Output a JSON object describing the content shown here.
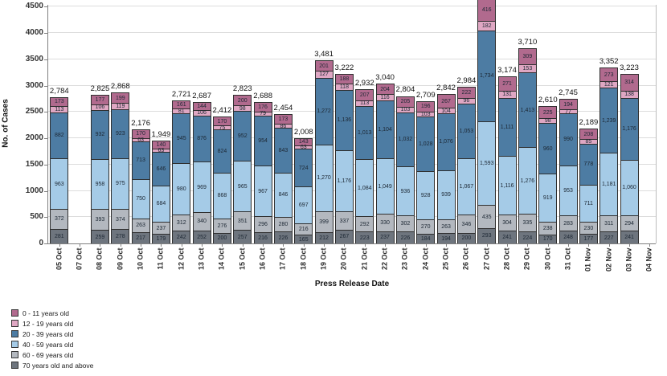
{
  "chart_data": {
    "type": "bar",
    "stacked": true,
    "xlabel": "Press Release Date",
    "ylabel": "No. of Cases",
    "ylim": [
      0,
      4500
    ],
    "yticks": [
      0,
      500,
      1000,
      1500,
      2000,
      2500,
      3000,
      3500,
      4000,
      4500
    ],
    "grid": "horizontal",
    "legend_position": "bottom-left",
    "series_order_bottom_to_top": [
      "70 years old and above",
      "60 - 69 years old",
      "40 - 59 years old",
      "20 - 39 years old",
      "12 - 19 years old",
      "0 - 11 years old"
    ],
    "legend": [
      {
        "label": "0 - 11 years old",
        "color": "#b16a8e"
      },
      {
        "label": "12 - 19 years old",
        "color": "#dfa7c3"
      },
      {
        "label": "20 - 39 years old",
        "color": "#4d7ca3"
      },
      {
        "label": "40 - 59 years old",
        "color": "#a5cbe7"
      },
      {
        "label": "60 - 69 years old",
        "color": "#b3b8bf"
      },
      {
        "label": "70 years old and above",
        "color": "#6e757e"
      }
    ],
    "colors_bottom_to_top": [
      "#6e757e",
      "#b3b8bf",
      "#a5cbe7",
      "#4d7ca3",
      "#dfa7c3",
      "#b16a8e"
    ],
    "note": "values arrays are bottom-to-top: [70+, 60-69, 40-59, 20-39, 12-19, 0-11]; total null = label not visible (27 Oct bar cropped at top); values null = no bar drawn for that date",
    "points": [
      {
        "date": "05 Oct",
        "total": 2784,
        "values": [
          281,
          372,
          963,
          882,
          113,
          173
        ]
      },
      {
        "date": "07 Oct",
        "total": null,
        "values": null
      },
      {
        "date": "08 Oct",
        "total": 2825,
        "values": [
          259,
          393,
          958,
          932,
          106,
          177
        ]
      },
      {
        "date": "09 Oct",
        "total": 2868,
        "values": [
          278,
          374,
          975,
          923,
          119,
          199
        ]
      },
      {
        "date": "10 Oct",
        "total": 2176,
        "values": [
          217,
          263,
          750,
          713,
          63,
          170
        ]
      },
      {
        "date": "11 Oct",
        "total": 1949,
        "values": [
          179,
          237,
          684,
          646,
          63,
          140
        ]
      },
      {
        "date": "12 Oct",
        "total": 2721,
        "values": [
          242,
          312,
          980,
          945,
          81,
          161
        ]
      },
      {
        "date": "13 Oct",
        "total": 2687,
        "values": [
          252,
          340,
          969,
          876,
          106,
          144
        ]
      },
      {
        "date": "14 Oct",
        "total": 2412,
        "values": [
          200,
          276,
          868,
          824,
          75,
          170
        ]
      },
      {
        "date": "15 Oct",
        "total": 2823,
        "values": [
          257,
          351,
          965,
          952,
          98,
          200
        ]
      },
      {
        "date": "16 Oct",
        "total": 2688,
        "values": [
          216,
          296,
          967,
          954,
          79,
          176
        ]
      },
      {
        "date": "17 Oct",
        "total": 2454,
        "values": [
          226,
          280,
          846,
          843,
          86,
          173
        ]
      },
      {
        "date": "18 Oct",
        "total": 2008,
        "values": [
          165,
          216,
          697,
          724,
          63,
          143
        ]
      },
      {
        "date": "19 Oct",
        "total": 3481,
        "values": [
          212,
          399,
          1270,
          1272,
          127,
          201
        ]
      },
      {
        "date": "20 Oct",
        "total": 3222,
        "values": [
          267,
          337,
          1176,
          1136,
          118,
          188
        ]
      },
      {
        "date": "21 Oct",
        "total": 2932,
        "values": [
          223,
          292,
          1084,
          1013,
          113,
          207
        ]
      },
      {
        "date": "22 Oct",
        "total": 3040,
        "values": [
          237,
          330,
          1049,
          1104,
          116,
          204
        ]
      },
      {
        "date": "23 Oct",
        "total": 2804,
        "values": [
          226,
          302,
          936,
          1032,
          103,
          205
        ]
      },
      {
        "date": "24 Oct",
        "total": 2709,
        "values": [
          184,
          270,
          928,
          1028,
          103,
          196
        ]
      },
      {
        "date": "25 Oct",
        "total": 2842,
        "values": [
          194,
          263,
          939,
          1076,
          104,
          267
        ]
      },
      {
        "date": "26 Oct",
        "total": 2984,
        "values": [
          200,
          346,
          1067,
          1053,
          96,
          222
        ]
      },
      {
        "date": "27 Oct",
        "total": null,
        "values": [
          293,
          435,
          1593,
          1734,
          182,
          416
        ]
      },
      {
        "date": "28 Oct",
        "total": 3174,
        "values": [
          241,
          304,
          1116,
          1111,
          131,
          271
        ]
      },
      {
        "date": "29 Oct",
        "total": 3710,
        "values": [
          224,
          335,
          1276,
          1413,
          153,
          309
        ]
      },
      {
        "date": "30 Oct",
        "total": 2610,
        "values": [
          170,
          238,
          919,
          960,
          98,
          225
        ]
      },
      {
        "date": "31 Oct",
        "total": 2745,
        "values": [
          248,
          283,
          953,
          990,
          77,
          194
        ]
      },
      {
        "date": "01 Nov",
        "total": 2189,
        "values": [
          177,
          230,
          711,
          778,
          85,
          208
        ]
      },
      {
        "date": "02 Nov",
        "total": 3352,
        "values": [
          227,
          311,
          1181,
          1239,
          121,
          273
        ]
      },
      {
        "date": "03 Nov",
        "total": 3223,
        "values": [
          241,
          294,
          1060,
          1176,
          138,
          314
        ]
      },
      {
        "date": "04 Nov",
        "total": null,
        "values": null
      }
    ]
  }
}
